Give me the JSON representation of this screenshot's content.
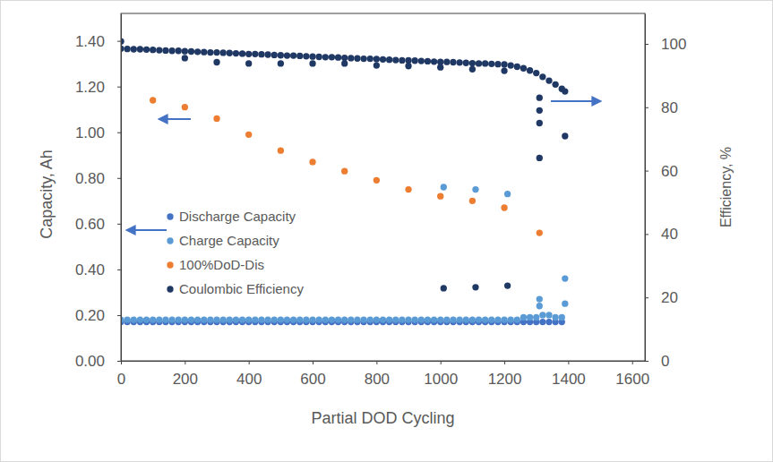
{
  "chart_data": {
    "type": "scatter",
    "x_label": "Partial DOD Cycling",
    "y_label": "Capacity, Ah",
    "y2_label": "Efficiency, %",
    "xlim": [
      0,
      1640
    ],
    "xticks": [
      0,
      200,
      400,
      600,
      800,
      1000,
      1200,
      1400,
      1600
    ],
    "ylim": [
      0,
      1.52
    ],
    "yticks": [
      {
        "value": 0,
        "label": "0.00"
      },
      {
        "value": 0.2,
        "label": "0.20"
      },
      {
        "value": 0.4,
        "label": "0.40"
      },
      {
        "value": 0.6,
        "label": "0.60"
      },
      {
        "value": 0.8,
        "label": "0.80"
      },
      {
        "value": 1.0,
        "label": "1.00"
      },
      {
        "value": 1.2,
        "label": "1.20"
      },
      {
        "value": 1.4,
        "label": "1.40"
      }
    ],
    "y2lim": [
      0,
      109.6
    ],
    "y2ticks": [
      0,
      20,
      40,
      60,
      80,
      100
    ],
    "grid": false,
    "legend": "left",
    "marker": "circle",
    "series": [
      {
        "name": "Discharge Capacity",
        "color": "#4472c4",
        "x": [
          0,
          20,
          40,
          60,
          80,
          100,
          120,
          140,
          160,
          180,
          200,
          220,
          240,
          260,
          280,
          300,
          320,
          340,
          360,
          380,
          400,
          420,
          440,
          460,
          480,
          500,
          520,
          540,
          560,
          580,
          600,
          620,
          640,
          660,
          680,
          700,
          720,
          740,
          760,
          780,
          800,
          820,
          840,
          860,
          880,
          900,
          920,
          940,
          960,
          980,
          1000,
          1020,
          1040,
          1060,
          1080,
          1100,
          1120,
          1140,
          1160,
          1180,
          1200,
          1220,
          1240,
          1260,
          1280,
          1300,
          1320,
          1340,
          1360,
          1380
        ],
        "values": [
          0.17,
          0.17,
          0.17,
          0.17,
          0.17,
          0.17,
          0.17,
          0.17,
          0.17,
          0.17,
          0.17,
          0.17,
          0.17,
          0.17,
          0.17,
          0.17,
          0.17,
          0.17,
          0.17,
          0.17,
          0.17,
          0.17,
          0.17,
          0.17,
          0.17,
          0.17,
          0.17,
          0.17,
          0.17,
          0.17,
          0.17,
          0.17,
          0.17,
          0.17,
          0.17,
          0.17,
          0.17,
          0.17,
          0.17,
          0.17,
          0.17,
          0.17,
          0.17,
          0.17,
          0.17,
          0.17,
          0.17,
          0.17,
          0.17,
          0.17,
          0.17,
          0.17,
          0.17,
          0.17,
          0.17,
          0.17,
          0.17,
          0.17,
          0.17,
          0.17,
          0.17,
          0.17,
          0.17,
          0.17,
          0.17,
          0.17,
          0.17,
          0.17,
          0.17,
          0.17
        ]
      },
      {
        "name": "Charge Capacity",
        "color": "#5b9bd5",
        "x": [
          0,
          20,
          40,
          60,
          80,
          100,
          120,
          140,
          160,
          180,
          200,
          220,
          240,
          260,
          280,
          300,
          320,
          340,
          360,
          380,
          400,
          420,
          440,
          460,
          480,
          500,
          520,
          540,
          560,
          580,
          600,
          620,
          640,
          660,
          680,
          700,
          720,
          740,
          760,
          780,
          800,
          820,
          840,
          860,
          880,
          900,
          920,
          940,
          960,
          980,
          1000,
          1020,
          1040,
          1060,
          1080,
          1100,
          1120,
          1140,
          1160,
          1180,
          1200,
          1220,
          1240,
          1260,
          1280,
          1300,
          1320,
          1340,
          1360,
          1380,
          1010,
          1110,
          1210,
          1310,
          1310,
          1390,
          1390
        ],
        "values": [
          0.18,
          0.18,
          0.18,
          0.18,
          0.18,
          0.18,
          0.18,
          0.18,
          0.18,
          0.18,
          0.18,
          0.18,
          0.18,
          0.18,
          0.18,
          0.18,
          0.18,
          0.18,
          0.18,
          0.18,
          0.18,
          0.18,
          0.18,
          0.18,
          0.18,
          0.18,
          0.18,
          0.18,
          0.18,
          0.18,
          0.18,
          0.18,
          0.18,
          0.18,
          0.18,
          0.18,
          0.18,
          0.18,
          0.18,
          0.18,
          0.18,
          0.18,
          0.18,
          0.18,
          0.18,
          0.18,
          0.18,
          0.18,
          0.18,
          0.18,
          0.18,
          0.18,
          0.18,
          0.18,
          0.18,
          0.18,
          0.18,
          0.18,
          0.18,
          0.18,
          0.18,
          0.18,
          0.18,
          0.19,
          0.19,
          0.19,
          0.2,
          0.2,
          0.19,
          0.19,
          0.76,
          0.75,
          0.73,
          0.27,
          0.24,
          0.36,
          0.25
        ]
      },
      {
        "name": "100%DoD-Dis",
        "color": "#ed7d31",
        "x": [
          100,
          200,
          300,
          400,
          500,
          600,
          700,
          800,
          900,
          1000,
          1100,
          1200,
          1310
        ],
        "values": [
          1.14,
          1.11,
          1.06,
          0.99,
          0.92,
          0.87,
          0.83,
          0.79,
          0.75,
          0.72,
          0.7,
          0.67,
          0.56
        ]
      },
      {
        "name": "Coulombic Efficiency",
        "color": "#203864",
        "axis": "y2",
        "x": [
          0,
          20,
          40,
          60,
          80,
          100,
          120,
          140,
          160,
          180,
          200,
          220,
          240,
          260,
          280,
          300,
          320,
          340,
          360,
          380,
          400,
          420,
          440,
          460,
          480,
          500,
          520,
          540,
          560,
          580,
          600,
          620,
          640,
          660,
          680,
          700,
          720,
          740,
          760,
          780,
          800,
          820,
          840,
          860,
          880,
          900,
          920,
          940,
          960,
          980,
          1000,
          1020,
          1040,
          1060,
          1080,
          1100,
          1120,
          1140,
          1160,
          1180,
          1200,
          1220,
          1240,
          1260,
          1280,
          1300,
          1320,
          1340,
          1360,
          1380,
          0,
          200,
          300,
          400,
          500,
          600,
          700,
          800,
          900,
          1000,
          1100,
          1200,
          1010,
          1110,
          1210,
          1310,
          1310,
          1310,
          1310,
          1390,
          1390
        ],
        "values": [
          98.5,
          98.4,
          98.3,
          98.3,
          98.2,
          98.1,
          98.0,
          97.9,
          97.8,
          97.8,
          97.7,
          97.6,
          97.5,
          97.4,
          97.3,
          97.3,
          97.2,
          97.1,
          97.0,
          96.9,
          96.8,
          96.8,
          96.7,
          96.6,
          96.5,
          96.4,
          96.3,
          96.3,
          96.2,
          96.1,
          96.0,
          95.9,
          95.8,
          95.8,
          95.7,
          95.6,
          95.5,
          95.4,
          95.3,
          95.3,
          95.2,
          95.1,
          95.0,
          94.9,
          94.8,
          94.8,
          94.7,
          94.6,
          94.5,
          94.4,
          94.3,
          94.3,
          94.2,
          94.1,
          94.0,
          93.9,
          93.8,
          93.8,
          93.7,
          93.6,
          93.5,
          93.2,
          92.8,
          92.3,
          91.6,
          90.8,
          89.6,
          88.4,
          87.2,
          85.8,
          100.8,
          95.5,
          94.2,
          93.8,
          93.8,
          93.8,
          93.8,
          93.2,
          93.0,
          92.6,
          92.0,
          91.5,
          22.9,
          23.2,
          23.7,
          83,
          79,
          75,
          64,
          70.9,
          85
        ]
      }
    ]
  }
}
